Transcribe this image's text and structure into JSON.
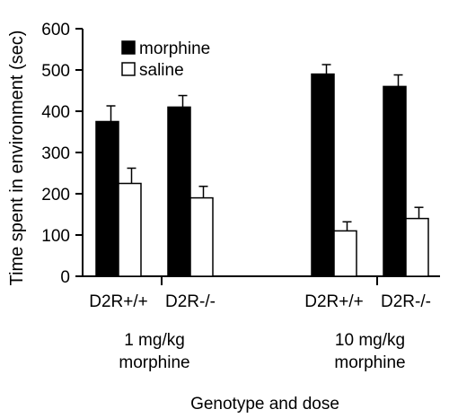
{
  "chart_data": {
    "type": "bar",
    "ylabel": "Time spent in environment (sec)",
    "xlabel": "Genotype and dose",
    "ylim": [
      0,
      600
    ],
    "yticks": [
      0,
      100,
      200,
      300,
      400,
      500,
      600
    ],
    "groups": [
      {
        "label_lines": [
          "1 mg/kg",
          "morphine"
        ],
        "categories": [
          {
            "label": "D2R+/+",
            "morphine": 375,
            "morphine_err": 38,
            "saline": 225,
            "saline_err": 37
          },
          {
            "label": "D2R-/-",
            "morphine": 410,
            "morphine_err": 28,
            "saline": 190,
            "saline_err": 28
          }
        ]
      },
      {
        "label_lines": [
          "10 mg/kg",
          "morphine"
        ],
        "categories": [
          {
            "label": "D2R+/+",
            "morphine": 490,
            "morphine_err": 23,
            "saline": 110,
            "saline_err": 22
          },
          {
            "label": "D2R-/-",
            "morphine": 460,
            "morphine_err": 28,
            "saline": 140,
            "saline_err": 27
          }
        ]
      }
    ],
    "series": [
      {
        "key": "morphine",
        "name": "morphine",
        "color": "#000000"
      },
      {
        "key": "saline",
        "name": "saline",
        "color": "#ffffff"
      }
    ],
    "legend_position": "top-left",
    "grid": false
  }
}
